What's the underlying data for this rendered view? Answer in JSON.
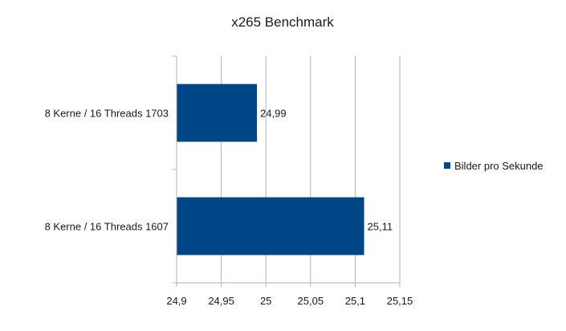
{
  "chart_data": {
    "type": "bar",
    "orientation": "horizontal",
    "title": "x265 Benchmark",
    "xlabel": "",
    "ylabel": "",
    "categories": [
      "8 Kerne / 16 Threads 1703",
      "8 Kerne / 16 Threads 1607"
    ],
    "series": [
      {
        "name": "Bilder pro Sekunde",
        "values": [
          24.99,
          25.11
        ],
        "value_labels": [
          "24,99",
          "25,11"
        ],
        "color": "#004586"
      }
    ],
    "xlim": [
      24.9,
      25.15
    ],
    "x_ticks": [
      24.9,
      24.95,
      25.0,
      25.05,
      25.1,
      25.15
    ],
    "x_tick_labels": [
      "24,9",
      "24,95",
      "25",
      "25,05",
      "25,1",
      "25,15"
    ],
    "grid": "vertical",
    "gridline_color": "#b3b3b3",
    "legend_position": "right"
  }
}
